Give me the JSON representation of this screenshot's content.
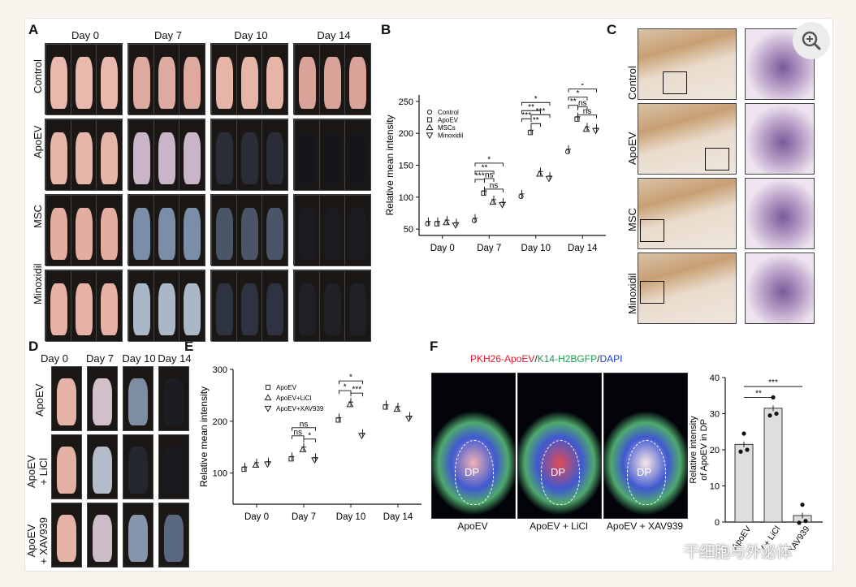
{
  "panels": {
    "A": {
      "letter": "A",
      "days": [
        "Day 0",
        "Day 7",
        "Day 10",
        "Day 14"
      ],
      "rows": [
        "Control",
        "ApoEV",
        "MSC",
        "Minoxidil"
      ]
    },
    "B": {
      "letter": "B"
    },
    "C": {
      "letter": "C",
      "rows": [
        "Control",
        "ApoEV",
        "MSC",
        "Minoxidil"
      ]
    },
    "D": {
      "letter": "D",
      "days": [
        "Day 0",
        "Day 7",
        "Day 10",
        "Day 14"
      ],
      "rows": [
        "ApoEV",
        "ApoEV\n+ LiCl",
        "ApoEV\n+ XAV939"
      ]
    },
    "E": {
      "letter": "E"
    },
    "F": {
      "letter": "F",
      "stain_parts": [
        {
          "text": "PKH26-ApoEV",
          "color": "#e8162b"
        },
        {
          "text": "/",
          "color": "#111111"
        },
        {
          "text": "K14-H2BGFP",
          "color": "#16a04a"
        },
        {
          "text": "/",
          "color": "#111111"
        },
        {
          "text": "DAPI",
          "color": "#1a3fd6"
        }
      ],
      "dp_label": "DP",
      "images": [
        "ApoEV",
        "ApoEV + LiCl",
        "ApoEV + XAV939"
      ]
    }
  },
  "chart_data": [
    {
      "id": "B",
      "type": "scatter",
      "ylabel": "Relative mean intensity",
      "categories": [
        "Day 0",
        "Day 7",
        "Day 10",
        "Day 14"
      ],
      "ylim": [
        40,
        260
      ],
      "yticks": [
        50,
        100,
        150,
        200,
        250
      ],
      "legend_position": "top-left",
      "series": [
        {
          "name": "Control",
          "marker": "circle",
          "values": [
            62,
            67,
            105,
            175
          ]
        },
        {
          "name": "ApoEV",
          "marker": "square",
          "values": [
            62,
            110,
            205,
            226
          ]
        },
        {
          "name": "MSCs",
          "marker": "triangle-up",
          "values": [
            64,
            96,
            140,
            210
          ]
        },
        {
          "name": "Minoxidil",
          "marker": "triangle-down",
          "values": [
            60,
            92,
            133,
            208
          ]
        }
      ],
      "significance": [
        "***",
        "**",
        "*",
        "ns",
        "ns",
        "***",
        "**",
        "*",
        "***",
        "**",
        "**",
        "*",
        "*",
        "ns",
        "ns"
      ]
    },
    {
      "id": "E",
      "type": "scatter",
      "ylabel": "Relative mean intensity",
      "categories": [
        "Day 0",
        "Day 7",
        "Day 10",
        "Day 14"
      ],
      "ylim": [
        40,
        300
      ],
      "yticks": [
        100,
        200,
        300
      ],
      "legend_position": "top-left",
      "series": [
        {
          "name": "ApoEV",
          "marker": "square",
          "values": [
            112,
            132,
            207,
            232
          ]
        },
        {
          "name": "ApoEV+LiCl",
          "marker": "triangle-up",
          "values": [
            120,
            150,
            237,
            228
          ]
        },
        {
          "name": "ApoEV+XAV939",
          "marker": "triangle-down",
          "values": [
            122,
            130,
            177,
            210
          ]
        }
      ],
      "significance": [
        "ns",
        "ns",
        "*",
        "*",
        "*",
        "***"
      ]
    },
    {
      "id": "F",
      "type": "bar",
      "ylabel": "Relative intensity of ApoEV in DP",
      "categories": [
        "ApoEV",
        "ApoEV + LiCl",
        "ApoEV + XAV939"
      ],
      "values": [
        21.5,
        31.5,
        1.8
      ],
      "ylim": [
        0,
        40
      ],
      "yticks": [
        0,
        10,
        20,
        30,
        40
      ],
      "significance": [
        "**",
        "***"
      ]
    }
  ],
  "watermark": {
    "text": "干细胞与外泌体",
    "icon": "wechat-icon"
  },
  "toolbar": {
    "zoom_icon": "zoom-in-icon"
  }
}
